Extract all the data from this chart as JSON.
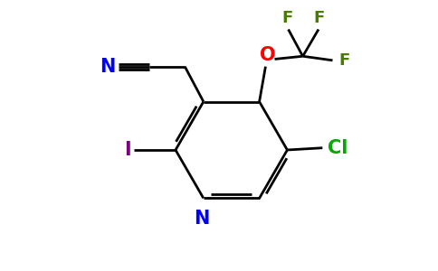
{
  "bg_color": "#ffffff",
  "ring_color": "#000000",
  "N_color": "#0000ff",
  "O_color": "#ff0000",
  "F_color": "#4a7c00",
  "Cl_color": "#00aa00",
  "I_color": "#7f007f",
  "CN_color": "#0000ff",
  "line_width": 2.0,
  "figsize": [
    4.84,
    3.0
  ],
  "dpi": 100,
  "xlim": [
    0,
    10
  ],
  "ylim": [
    0,
    6.5
  ]
}
